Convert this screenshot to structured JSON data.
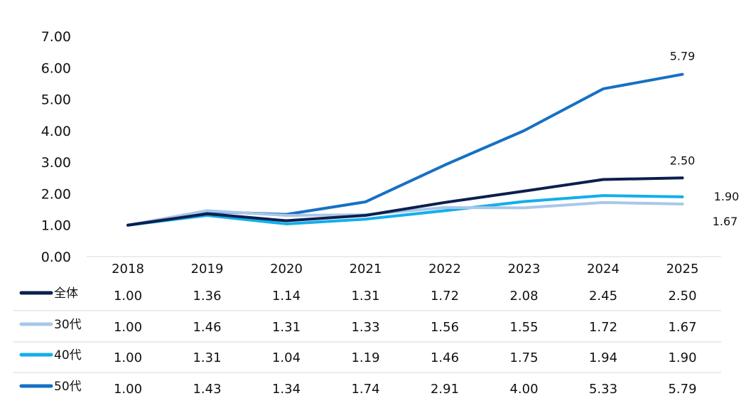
{
  "chart_data": {
    "type": "line",
    "x": [
      "2018",
      "2019",
      "2020",
      "2021",
      "2022",
      "2023",
      "2024",
      "2025"
    ],
    "ylim": [
      0,
      7
    ],
    "yticks": [
      "0.00",
      "1.00",
      "2.00",
      "3.00",
      "4.00",
      "5.00",
      "6.00",
      "7.00"
    ],
    "grid": false,
    "legend_placement": "data-table-below",
    "series": [
      {
        "name": "全体",
        "color": "#0b1f4f",
        "values": [
          1.0,
          1.36,
          1.14,
          1.31,
          1.72,
          2.08,
          2.45,
          2.5
        ],
        "labels": [
          "1.00",
          "1.36",
          "1.14",
          "1.31",
          "1.72",
          "2.08",
          "2.45",
          "2.50"
        ],
        "end_label": "2.50"
      },
      {
        "name": "30代",
        "color": "#a9c7e8",
        "values": [
          1.0,
          1.46,
          1.31,
          1.33,
          1.56,
          1.55,
          1.72,
          1.67
        ],
        "labels": [
          "1.00",
          "1.46",
          "1.31",
          "1.33",
          "1.56",
          "1.55",
          "1.72",
          "1.67"
        ],
        "end_label": "1.67"
      },
      {
        "name": "40代",
        "color": "#13aeea",
        "values": [
          1.0,
          1.31,
          1.04,
          1.19,
          1.46,
          1.75,
          1.94,
          1.9
        ],
        "labels": [
          "1.00",
          "1.31",
          "1.04",
          "1.19",
          "1.46",
          "1.75",
          "1.94",
          "1.90"
        ],
        "end_label": "1.90"
      },
      {
        "name": "50代",
        "color": "#1670c4",
        "values": [
          1.0,
          1.43,
          1.34,
          1.74,
          2.91,
          4.0,
          5.33,
          5.79
        ],
        "labels": [
          "1.00",
          "1.43",
          "1.34",
          "1.74",
          "2.91",
          "4.00",
          "5.33",
          "5.79"
        ],
        "end_label": "5.79"
      }
    ]
  }
}
